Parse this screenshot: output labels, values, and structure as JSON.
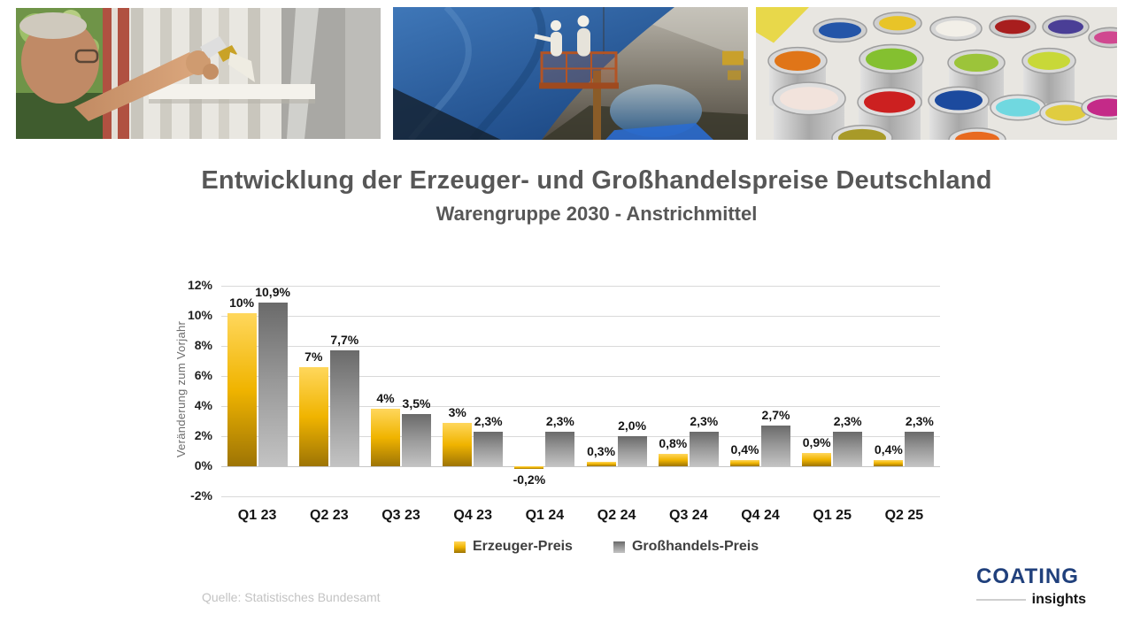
{
  "title": "Entwicklung der Erzeuger- und Großhandelspreise Deutschland",
  "subtitle": "Warengruppe 2030 - Anstrichmittel",
  "source": "Quelle: Statistisches Bundesamt",
  "logo": {
    "brand": "COATING",
    "sub": "insights",
    "brand_color": "#20407c"
  },
  "header": {
    "images": [
      {
        "name": "window-painting-photo",
        "description": "man painting white window frame with brush"
      },
      {
        "name": "ship-hull-painting-photo",
        "description": "workers on lift painting blue ship hull"
      },
      {
        "name": "paint-cans-photo",
        "description": "open colorful paint cans"
      }
    ]
  },
  "chart_data": {
    "type": "bar",
    "categories": [
      "Q1 23",
      "Q2 23",
      "Q3 23",
      "Q4 23",
      "Q1 24",
      "Q2 24",
      "Q3 24",
      "Q4 24",
      "Q1 25",
      "Q2 25"
    ],
    "series": [
      {
        "name": "Erzeuger-Preis",
        "colors": [
          "#ffd75c",
          "#f0b400",
          "#9d7405"
        ],
        "values": [
          10.2,
          6.6,
          3.8,
          2.9,
          -0.2,
          0.3,
          0.8,
          0.4,
          0.9,
          0.4
        ],
        "labels": [
          "10%",
          "7%",
          "4%",
          "3%",
          "-0,2%",
          "0,3%",
          "0,8%",
          "0,4%",
          "0,9%",
          "0,4%"
        ]
      },
      {
        "name": "Großhandels-Preis",
        "colors": [
          "#6a6a6a",
          "#9a9a9a",
          "#c3c3c3"
        ],
        "values": [
          10.9,
          7.7,
          3.5,
          2.3,
          2.3,
          2.0,
          2.3,
          2.7,
          2.3,
          2.3
        ],
        "labels": [
          "10,9%",
          "7,7%",
          "3,5%",
          "2,3%",
          "2,3%",
          "2,0%",
          "2,3%",
          "2,7%",
          "2,3%",
          "2,3%"
        ]
      }
    ],
    "ylabel": "Veränderung zum Vorjahr",
    "xlabel": "",
    "yticks": [
      12,
      10,
      8,
      6,
      4,
      2,
      0,
      -2
    ],
    "ytick_labels": [
      "12%",
      "10%",
      "8%",
      "6%",
      "4%",
      "2%",
      "0%",
      "-2%"
    ],
    "ylim": [
      -2,
      12
    ],
    "grid": true,
    "legend_position": "bottom"
  }
}
